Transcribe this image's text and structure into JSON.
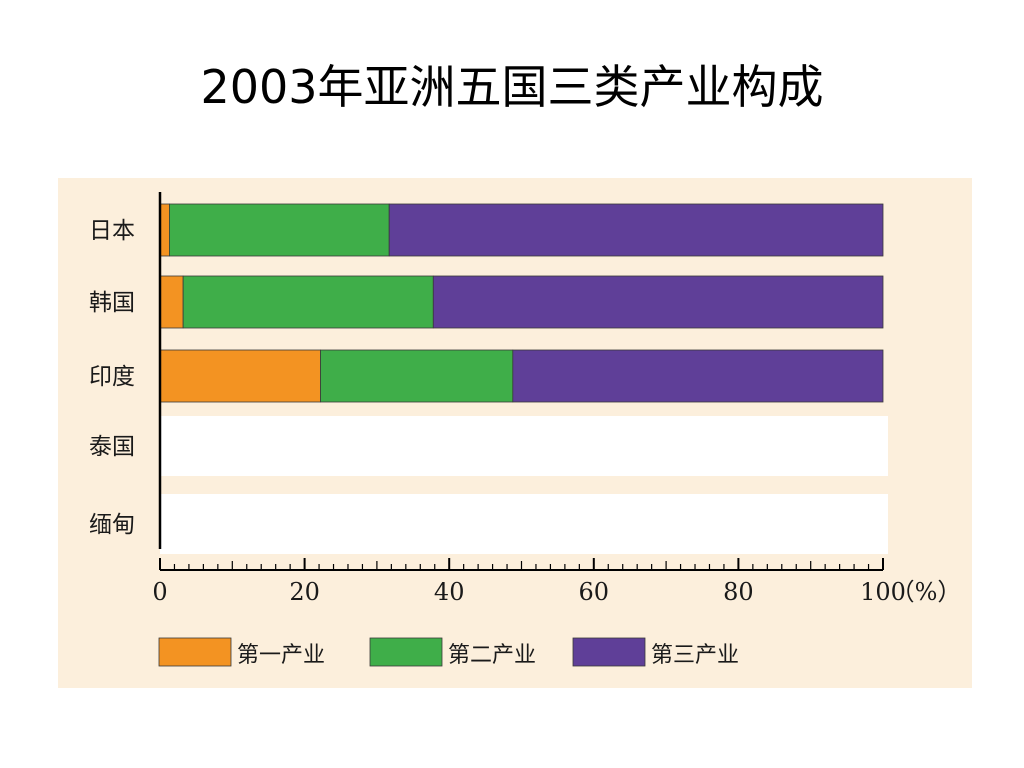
{
  "title": "2003年亚洲五国三类产业构成",
  "chart_data": {
    "type": "bar",
    "orientation": "horizontal",
    "stacked": true,
    "categories": [
      "日本",
      "韩国",
      "印度",
      "泰国",
      "缅甸"
    ],
    "series": [
      {
        "name": "第一产业",
        "color": "#f39322",
        "values": [
          1.3,
          3.2,
          22.2,
          null,
          null
        ]
      },
      {
        "name": "第二产业",
        "color": "#3fae49",
        "values": [
          30.4,
          34.6,
          26.6,
          null,
          null
        ]
      },
      {
        "name": "第三产业",
        "color": "#5f3f98",
        "values": [
          68.3,
          62.2,
          51.2,
          null,
          null
        ]
      }
    ],
    "xlim": [
      0,
      100
    ],
    "xticks": [
      "0",
      "20",
      "40",
      "60",
      "80",
      "100"
    ],
    "xunit": "（%）",
    "xlabel": "",
    "ylabel": "",
    "legend_position": "bottom",
    "empty_row_color": "#ffffff",
    "grid": false
  }
}
